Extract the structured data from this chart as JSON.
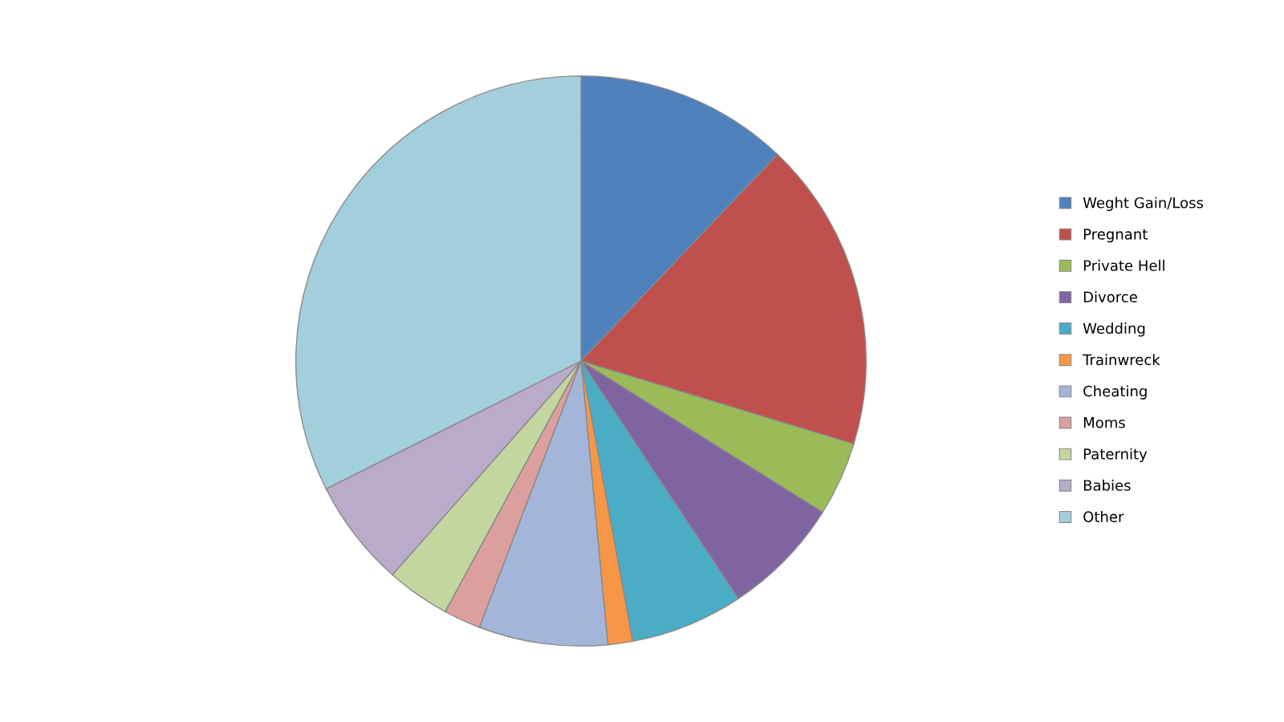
{
  "chart_data": {
    "type": "pie",
    "categories": [
      "Weght Gain/Loss",
      "Pregnant",
      "Private Hell",
      "Divorce",
      "Wedding",
      "Trainwreck",
      "Cheating",
      "Moms",
      "Paternity",
      "Babies",
      "Other"
    ],
    "values": [
      12.1,
      17.6,
      4.2,
      6.8,
      6.4,
      1.4,
      7.3,
      2.1,
      3.6,
      6.1,
      32.4
    ],
    "colors": [
      "#4f81bd",
      "#c0504d",
      "#9bbb59",
      "#8064a2",
      "#4bacc6",
      "#f79646",
      "#a3b6d9",
      "#dba09e",
      "#c4d6a0",
      "#b9abc9",
      "#a3cfdd"
    ],
    "legend": "right"
  }
}
